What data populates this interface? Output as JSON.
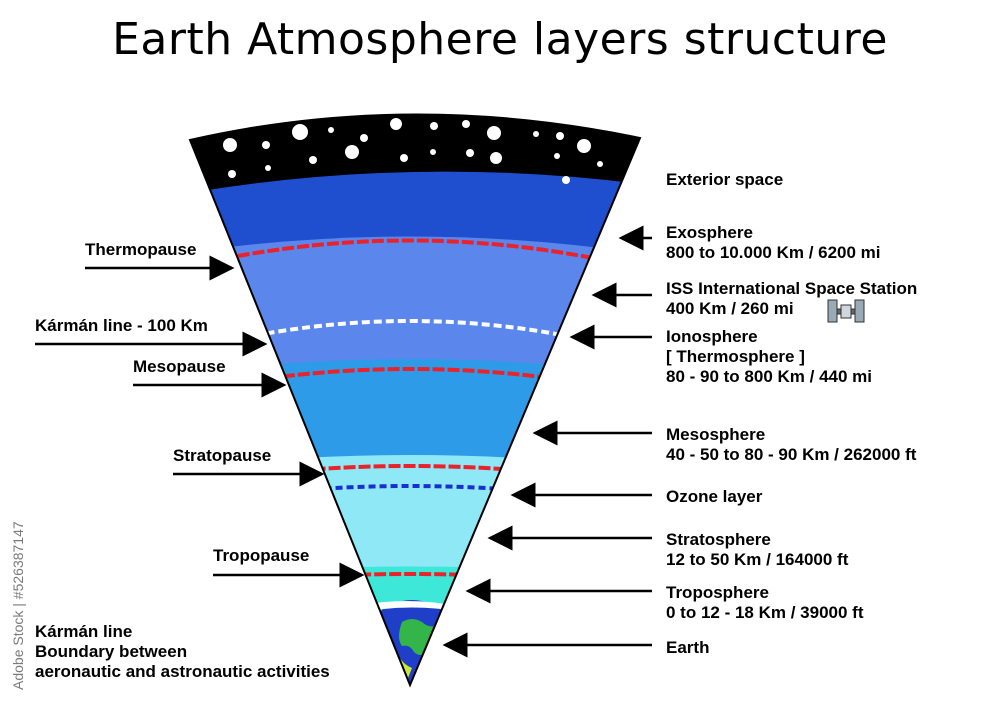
{
  "title": "Earth Atmosphere layers structure",
  "watermark": "Adobe Stock | #526387147",
  "right_labels": {
    "exterior_space": [
      "Exterior space"
    ],
    "exosphere": [
      "Exosphere",
      "800 to 10.000 Km / 6200 mi"
    ],
    "iss": [
      "ISS International Space Station",
      "400 Km / 260 mi"
    ],
    "ionosphere": [
      "Ionosphere",
      "[ Thermosphere ]",
      "80 - 90 to 800 Km / 440 mi"
    ],
    "mesosphere": [
      "Mesosphere",
      "40 - 50 to 80 - 90 Km / 262000 ft"
    ],
    "ozone": [
      "Ozone layer"
    ],
    "stratosphere": [
      "Stratosphere",
      "12 to 50 Km / 164000 ft"
    ],
    "troposphere": [
      "Troposphere",
      "0 to 12 - 18 Km / 39000 ft"
    ],
    "earth": [
      "Earth"
    ]
  },
  "left_labels": {
    "thermopause": "Thermopause",
    "karman": "Kármán line - 100 Km",
    "mesopause": "Mesopause",
    "stratopause": "Stratopause",
    "tropopause": "Tropopause",
    "karman_note": [
      "Kármán line",
      "Boundary between",
      "aeronautic and astronautic activities"
    ]
  },
  "colors": {
    "space": "#000000",
    "exosphere": "#1f4fcf",
    "thermosphere": "#5b86ec",
    "mesosphere": "#2e9be8",
    "stratosphere": "#8ee8f5",
    "troposphere": "#3ee8d8",
    "pause_line": "#e8232b",
    "karman_line": "#ffffff",
    "ozone_line": "#1a2fd0",
    "earth_ocean": "#1f3fc8",
    "earth_land": "#33b54a"
  }
}
